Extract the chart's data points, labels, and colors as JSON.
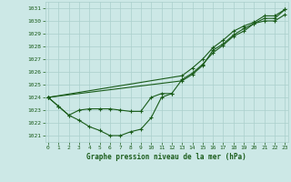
{
  "bg_color": "#cce8e6",
  "grid_color": "#aacfcc",
  "line_color": "#1a5c1a",
  "text_color": "#1a5c1a",
  "xlabel": "Graphe pression niveau de la mer (hPa)",
  "ylim": [
    1020.5,
    1031.5
  ],
  "xlim": [
    -0.3,
    23.3
  ],
  "yticks": [
    1021,
    1022,
    1023,
    1024,
    1025,
    1026,
    1027,
    1028,
    1029,
    1030,
    1031
  ],
  "xticks": [
    0,
    1,
    2,
    3,
    4,
    5,
    6,
    7,
    8,
    9,
    10,
    11,
    12,
    13,
    14,
    15,
    16,
    17,
    18,
    19,
    20,
    21,
    22,
    23
  ],
  "series1_x": [
    0,
    1,
    2,
    3,
    4,
    5,
    6,
    7,
    8,
    9,
    10,
    11,
    12
  ],
  "series1_y": [
    1024.0,
    1023.3,
    1022.6,
    1022.2,
    1021.7,
    1021.4,
    1021.0,
    1021.0,
    1021.3,
    1021.5,
    1022.4,
    1024.0,
    1024.3
  ],
  "series2_x": [
    0,
    1,
    2,
    3,
    4,
    5,
    6,
    7,
    8,
    9,
    10,
    11,
    12,
    13,
    14,
    15,
    16,
    17,
    18,
    19,
    20,
    21,
    22,
    23
  ],
  "series2_y": [
    1024.0,
    1023.3,
    1022.6,
    1023.0,
    1023.1,
    1023.1,
    1023.1,
    1023.0,
    1022.9,
    1022.9,
    1024.0,
    1024.3,
    1024.3,
    1025.4,
    1025.9,
    1026.6,
    1027.5,
    1028.1,
    1028.8,
    1029.2,
    1029.8,
    1030.0,
    1030.0,
    1030.5
  ],
  "series3_x": [
    0,
    13,
    14,
    15,
    16,
    17,
    18,
    19,
    20,
    21,
    22,
    23
  ],
  "series3_y": [
    1024.0,
    1025.7,
    1026.3,
    1027.0,
    1027.9,
    1028.5,
    1029.2,
    1029.6,
    1029.9,
    1030.4,
    1030.4,
    1030.9
  ],
  "series4_x": [
    0,
    13,
    14,
    15,
    16,
    17,
    18,
    19,
    20,
    21,
    22,
    23
  ],
  "series4_y": [
    1024.0,
    1025.3,
    1025.8,
    1026.5,
    1027.7,
    1028.2,
    1028.9,
    1029.4,
    1029.8,
    1030.2,
    1030.2,
    1030.9
  ]
}
